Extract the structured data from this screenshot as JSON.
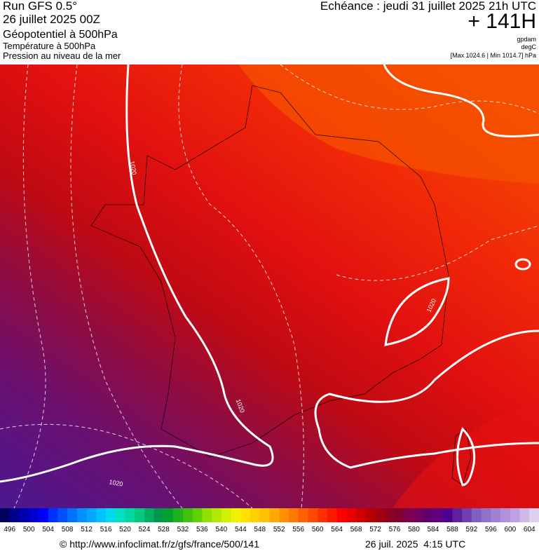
{
  "header": {
    "run": "Run GFS 0.5°",
    "date": "26 juillet 2025 00Z",
    "field": "Géopotentiel à 500hPa",
    "field2": "Température à 500hPa",
    "field3": "Pression au niveau de la mer",
    "valid": "Echéance : jeudi 31 juillet 2025 21h UTC",
    "lead": "+ 141H",
    "unit1": "gpdam",
    "unit2": "degC",
    "range": "[Max 1024.6 | Min 1014.7] hPa"
  },
  "map": {
    "isobar_labels": [
      "1020",
      "1020",
      "1020",
      "1020"
    ]
  },
  "legend": {
    "ticks": [
      496,
      500,
      504,
      508,
      512,
      516,
      520,
      524,
      528,
      532,
      536,
      540,
      544,
      548,
      552,
      556,
      560,
      564,
      568,
      572,
      576,
      580,
      584,
      588,
      592,
      596,
      600,
      604
    ],
    "colors": [
      "#000060",
      "#00008b",
      "#0000b0",
      "#0000d0",
      "#0000ff",
      "#0030ff",
      "#0050ff",
      "#0070ff",
      "#0090ff",
      "#00a8ff",
      "#00c0ff",
      "#00d8f0",
      "#00e0c0",
      "#00d8a0",
      "#00c880",
      "#00b060",
      "#009848",
      "#00a030",
      "#20b020",
      "#40c010",
      "#60d000",
      "#90e000",
      "#b0e800",
      "#d0f000",
      "#f0f000",
      "#ffe000",
      "#ffd000",
      "#ffc000",
      "#ffa800",
      "#ff9000",
      "#ff7800",
      "#ff6000",
      "#ff4800",
      "#ff3000",
      "#ff1800",
      "#ff0000",
      "#e80000",
      "#d00000",
      "#b80000",
      "#a00010",
      "#900020",
      "#800030",
      "#800050",
      "#700060",
      "#600070",
      "#600080",
      "#500090",
      "#6020a0",
      "#7040b0",
      "#8060c0",
      "#9070c8",
      "#a080d0",
      "#b090d8",
      "#c0a0e0",
      "#d0b8e8",
      "#e0d0f0"
    ]
  },
  "footer": {
    "url": "© http://www.infoclimat.fr/z/gfs/france/500/141",
    "stamp": "26 juil. 2025  4:15 UTC"
  }
}
